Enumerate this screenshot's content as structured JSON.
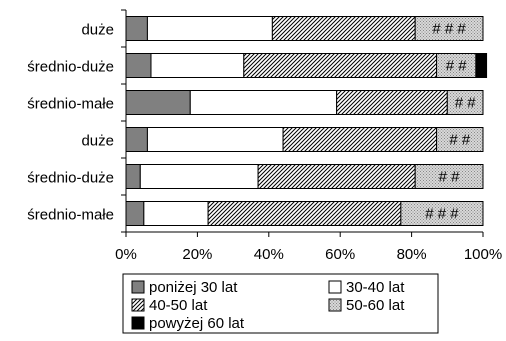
{
  "chart_data": {
    "type": "bar",
    "orientation": "horizontal",
    "stacked": "percent",
    "title": "",
    "xlabel": "",
    "ylabel": "",
    "xlim": [
      0,
      100
    ],
    "x_ticks": [
      "0%",
      "20%",
      "40%",
      "60%",
      "80%",
      "100%"
    ],
    "grid": false,
    "legend_position": "bottom",
    "categories": [
      "duże",
      "średnio-duże",
      "średnio-małe",
      "duże",
      "średnio-duże",
      "średnio-małe"
    ],
    "series": [
      {
        "name": "poniżej 30 lat",
        "pattern": "grey",
        "color": "#808080",
        "values": [
          6,
          7,
          18,
          6,
          4,
          5
        ]
      },
      {
        "name": "30-40 lat",
        "pattern": "white",
        "color": "#ffffff",
        "values": [
          35,
          26,
          41,
          38,
          33,
          18
        ]
      },
      {
        "name": "40-50 lat",
        "pattern": "diagonal",
        "color": "#a0a0a0",
        "values": [
          40,
          54,
          31,
          43,
          44,
          54
        ]
      },
      {
        "name": "50-60 lat",
        "pattern": "hash",
        "color": "#c8c8c8",
        "values": [
          19,
          11,
          10,
          13,
          19,
          23
        ]
      },
      {
        "name": "powyżej 60 lat",
        "pattern": "black",
        "color": "#000000",
        "values": [
          0,
          3,
          0,
          0,
          0,
          0
        ]
      }
    ],
    "segment_labels": [
      {
        "row": 0,
        "series": 3,
        "text": "# # #"
      },
      {
        "row": 1,
        "series": 3,
        "text": "# #"
      },
      {
        "row": 2,
        "series": 3,
        "text": "# #"
      },
      {
        "row": 3,
        "series": 3,
        "text": "# #"
      },
      {
        "row": 4,
        "series": 3,
        "text": "# #"
      },
      {
        "row": 5,
        "series": 3,
        "text": "# # #"
      }
    ]
  }
}
